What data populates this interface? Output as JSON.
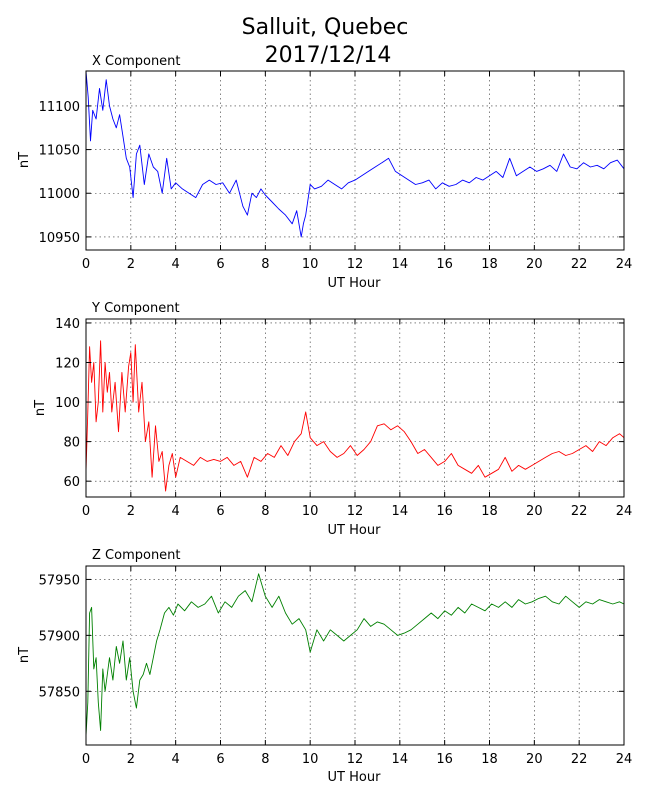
{
  "figure": {
    "title_line1": "Salluit, Quebec",
    "title_line2": "2017/12/14"
  },
  "chart_data": [
    {
      "type": "line",
      "title": "X Component",
      "xlabel": "UT Hour",
      "ylabel": "nT",
      "xlim": [
        0,
        24
      ],
      "ylim": [
        10935,
        11140
      ],
      "xticks": [
        0,
        2,
        4,
        6,
        8,
        10,
        12,
        14,
        16,
        18,
        20,
        22,
        24
      ],
      "yticks": [
        10950,
        11000,
        11050,
        11100
      ],
      "grid": true,
      "color": "#0000ff",
      "x": [
        0,
        0.1,
        0.2,
        0.3,
        0.45,
        0.6,
        0.75,
        0.9,
        1.05,
        1.2,
        1.35,
        1.5,
        1.65,
        1.8,
        1.95,
        2.1,
        2.25,
        2.4,
        2.6,
        2.8,
        3.0,
        3.2,
        3.4,
        3.6,
        3.8,
        4.0,
        4.3,
        4.6,
        4.9,
        5.2,
        5.5,
        5.8,
        6.1,
        6.4,
        6.7,
        7.0,
        7.2,
        7.4,
        7.6,
        7.8,
        8.0,
        8.3,
        8.6,
        8.9,
        9.2,
        9.4,
        9.6,
        9.7,
        9.8,
        10.0,
        10.2,
        10.5,
        10.8,
        11.1,
        11.4,
        11.7,
        12.0,
        12.3,
        12.6,
        12.9,
        13.2,
        13.5,
        13.8,
        14.1,
        14.4,
        14.7,
        15.0,
        15.3,
        15.6,
        15.9,
        16.2,
        16.5,
        16.8,
        17.1,
        17.4,
        17.7,
        18.0,
        18.3,
        18.6,
        18.9,
        19.2,
        19.5,
        19.8,
        20.1,
        20.4,
        20.7,
        21.0,
        21.3,
        21.6,
        21.9,
        22.2,
        22.5,
        22.8,
        23.1,
        23.4,
        23.7,
        24.0
      ],
      "values": [
        11140,
        11110,
        11060,
        11095,
        11085,
        11120,
        11095,
        11130,
        11100,
        11085,
        11075,
        11090,
        11065,
        11040,
        11030,
        10995,
        11045,
        11055,
        11010,
        11045,
        11030,
        11025,
        11000,
        11040,
        11005,
        11012,
        11005,
        11000,
        10995,
        11010,
        11015,
        11010,
        11012,
        11000,
        11015,
        10985,
        10975,
        11000,
        10995,
        11005,
        10998,
        10990,
        10982,
        10975,
        10965,
        10980,
        10950,
        10965,
        10975,
        11010,
        11005,
        11008,
        11015,
        11010,
        11005,
        11012,
        11015,
        11020,
        11025,
        11030,
        11035,
        11040,
        11025,
        11020,
        11015,
        11010,
        11012,
        11015,
        11005,
        11012,
        11008,
        11010,
        11015,
        11012,
        11018,
        11015,
        11020,
        11025,
        11018,
        11040,
        11020,
        11025,
        11030,
        11025,
        11028,
        11032,
        11025,
        11045,
        11030,
        11028,
        11035,
        11030,
        11032,
        11028,
        11035,
        11038,
        11028
      ]
    },
    {
      "type": "line",
      "title": "Y Component",
      "xlabel": "UT Hour",
      "ylabel": "nT",
      "xlim": [
        0,
        24
      ],
      "ylim": [
        52,
        142
      ],
      "xticks": [
        0,
        2,
        4,
        6,
        8,
        10,
        12,
        14,
        16,
        18,
        20,
        22,
        24
      ],
      "yticks": [
        60,
        80,
        100,
        120,
        140
      ],
      "grid": true,
      "color": "#ff0000",
      "x": [
        0,
        0.08,
        0.16,
        0.25,
        0.35,
        0.45,
        0.55,
        0.65,
        0.75,
        0.85,
        0.95,
        1.05,
        1.15,
        1.3,
        1.45,
        1.6,
        1.75,
        1.9,
        2.0,
        2.1,
        2.2,
        2.35,
        2.5,
        2.65,
        2.8,
        2.95,
        3.1,
        3.25,
        3.4,
        3.55,
        3.7,
        3.85,
        4.0,
        4.2,
        4.5,
        4.8,
        5.1,
        5.4,
        5.7,
        6.0,
        6.3,
        6.6,
        6.9,
        7.2,
        7.5,
        7.8,
        8.1,
        8.4,
        8.7,
        9.0,
        9.3,
        9.6,
        9.8,
        10.0,
        10.3,
        10.6,
        10.9,
        11.2,
        11.5,
        11.8,
        12.1,
        12.4,
        12.7,
        13.0,
        13.3,
        13.6,
        13.9,
        14.2,
        14.5,
        14.8,
        15.1,
        15.4,
        15.7,
        16.0,
        16.3,
        16.6,
        16.9,
        17.2,
        17.5,
        17.8,
        18.1,
        18.4,
        18.7,
        19.0,
        19.3,
        19.6,
        19.9,
        20.2,
        20.5,
        20.8,
        21.1,
        21.4,
        21.7,
        22.0,
        22.3,
        22.6,
        22.9,
        23.2,
        23.5,
        23.8,
        24.0
      ],
      "values": [
        65,
        95,
        128,
        110,
        120,
        90,
        100,
        131,
        95,
        120,
        105,
        115,
        95,
        110,
        85,
        115,
        95,
        118,
        125,
        100,
        129,
        95,
        110,
        80,
        90,
        62,
        88,
        70,
        75,
        55,
        68,
        74,
        62,
        72,
        70,
        68,
        72,
        70,
        71,
        70,
        72,
        68,
        70,
        62,
        72,
        70,
        74,
        72,
        78,
        73,
        80,
        84,
        95,
        82,
        78,
        80,
        75,
        72,
        74,
        78,
        73,
        76,
        80,
        88,
        89,
        86,
        88,
        85,
        80,
        74,
        76,
        72,
        68,
        70,
        74,
        68,
        66,
        64,
        68,
        62,
        64,
        66,
        72,
        65,
        68,
        66,
        68,
        70,
        72,
        74,
        75,
        73,
        74,
        76,
        78,
        75,
        80,
        78,
        82,
        84,
        82
      ]
    },
    {
      "type": "line",
      "title": "Z Component",
      "xlabel": "UT Hour",
      "ylabel": "nT",
      "xlim": [
        0,
        24
      ],
      "ylim": [
        57802,
        57962
      ],
      "xticks": [
        0,
        2,
        4,
        6,
        8,
        10,
        12,
        14,
        16,
        18,
        20,
        22,
        24
      ],
      "yticks": [
        57850,
        57900,
        57950
      ],
      "grid": true,
      "color": "#008000",
      "x": [
        0,
        0.08,
        0.16,
        0.25,
        0.35,
        0.45,
        0.55,
        0.65,
        0.75,
        0.85,
        0.95,
        1.05,
        1.2,
        1.35,
        1.5,
        1.65,
        1.8,
        1.95,
        2.1,
        2.25,
        2.4,
        2.55,
        2.7,
        2.85,
        3.0,
        3.15,
        3.3,
        3.5,
        3.7,
        3.9,
        4.1,
        4.4,
        4.7,
        5.0,
        5.3,
        5.6,
        5.9,
        6.2,
        6.5,
        6.8,
        7.1,
        7.4,
        7.7,
        8.0,
        8.3,
        8.6,
        8.9,
        9.2,
        9.5,
        9.8,
        10.0,
        10.3,
        10.6,
        10.9,
        11.2,
        11.5,
        11.8,
        12.1,
        12.4,
        12.7,
        13.0,
        13.3,
        13.6,
        13.9,
        14.2,
        14.5,
        14.8,
        15.1,
        15.4,
        15.7,
        16.0,
        16.3,
        16.6,
        16.9,
        17.2,
        17.5,
        17.8,
        18.1,
        18.4,
        18.7,
        19.0,
        19.3,
        19.6,
        19.9,
        20.2,
        20.5,
        20.8,
        21.1,
        21.4,
        21.7,
        22.0,
        22.3,
        22.6,
        22.9,
        23.2,
        23.5,
        23.8,
        24.0
      ],
      "values": [
        57810,
        57840,
        57920,
        57925,
        57870,
        57880,
        57840,
        57815,
        57870,
        57850,
        57865,
        57880,
        57860,
        57890,
        57875,
        57895,
        57860,
        57880,
        57850,
        57835,
        57860,
        57865,
        57875,
        57865,
        57880,
        57895,
        57905,
        57920,
        57925,
        57918,
        57928,
        57922,
        57930,
        57925,
        57928,
        57935,
        57920,
        57930,
        57925,
        57935,
        57940,
        57930,
        57955,
        57935,
        57925,
        57935,
        57920,
        57910,
        57915,
        57905,
        57885,
        57905,
        57895,
        57905,
        57900,
        57895,
        57900,
        57905,
        57915,
        57908,
        57912,
        57910,
        57905,
        57900,
        57902,
        57905,
        57910,
        57915,
        57920,
        57915,
        57922,
        57918,
        57925,
        57920,
        57928,
        57925,
        57922,
        57928,
        57925,
        57930,
        57925,
        57932,
        57928,
        57930,
        57933,
        57935,
        57930,
        57928,
        57935,
        57930,
        57925,
        57930,
        57928,
        57932,
        57930,
        57928,
        57930,
        57928
      ]
    }
  ]
}
